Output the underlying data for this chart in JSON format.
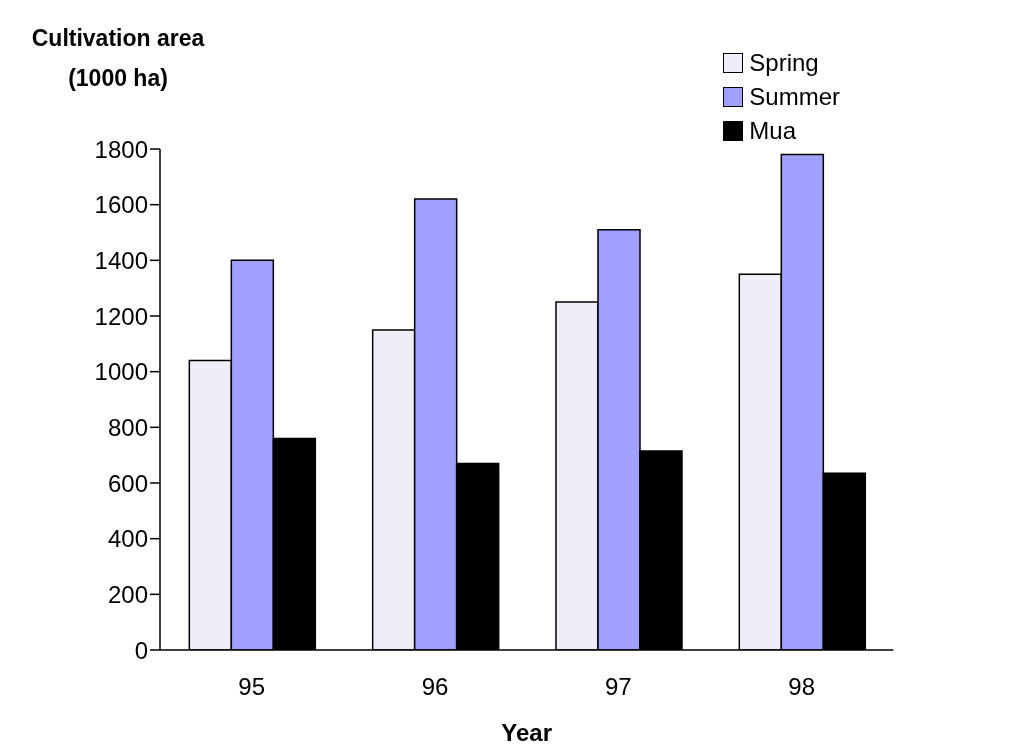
{
  "chart_data": {
    "type": "bar",
    "ylabel": "Cultivation area (1000 ha)",
    "xlabel": "Year",
    "categories": [
      "95",
      "96",
      "97",
      "98"
    ],
    "series": [
      {
        "name": "Spring",
        "color": "#eeeef8",
        "values": [
          1040,
          1150,
          1250,
          1350
        ]
      },
      {
        "name": "Summer",
        "color": "#a0a0ff",
        "values": [
          1400,
          1620,
          1510,
          1780
        ]
      },
      {
        "name": "Mua",
        "color": "#000000",
        "values": [
          760,
          670,
          715,
          635
        ]
      }
    ],
    "ylim": [
      0,
      1800
    ],
    "yticks": [
      0,
      200,
      400,
      600,
      800,
      1000,
      1200,
      1400,
      1600,
      1800
    ],
    "grid": false,
    "legend": "top right"
  }
}
